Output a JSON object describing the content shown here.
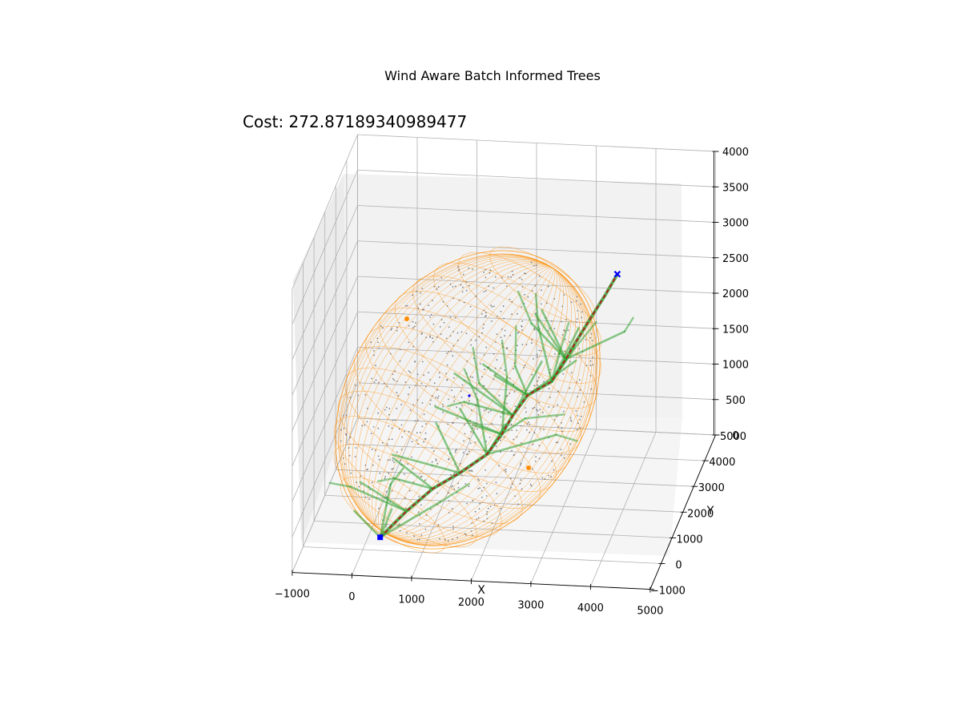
{
  "chart_data": {
    "type": "scatter",
    "projection": "3d",
    "title": "Wind Aware Batch Informed Trees",
    "annotation": "Cost: 272.87189340989477",
    "xlabel": "X",
    "ylabel": "Y",
    "zlabel": "",
    "xlim": [
      -1000,
      5000
    ],
    "ylim": [
      -1000,
      5000
    ],
    "zlim": [
      0,
      4000
    ],
    "xticks": [
      "−1000",
      "0",
      "1000",
      "2000",
      "3000",
      "4000",
      "5000"
    ],
    "yticks": [
      "−1000",
      "0",
      "1000",
      "2000",
      "3000",
      "4000",
      "5000"
    ],
    "zticks": [
      "0",
      "500",
      "1000",
      "1500",
      "2000",
      "2500",
      "3000",
      "3500",
      "4000"
    ],
    "grid": true,
    "colors": {
      "ellipsoid": "#ff8c00",
      "samples": "#808080",
      "tree": "#2ca02c",
      "path": "#b22222",
      "start_goal": "#0000ff",
      "pane": "#f2f2f2",
      "grid": "#b0b0b0"
    },
    "series": [
      {
        "kind": "start",
        "marker": "square",
        "point": [
          200,
          500,
          0
        ]
      },
      {
        "kind": "goal",
        "marker": "x",
        "point": [
          3500,
          4200,
          2500
        ]
      },
      {
        "kind": "solution_path",
        "points": [
          [
            200,
            500,
            0
          ],
          [
            550,
            1000,
            200
          ],
          [
            900,
            1500,
            350
          ],
          [
            1300,
            1800,
            480
          ],
          [
            1700,
            2100,
            650
          ],
          [
            1900,
            2350,
            850
          ],
          [
            2050,
            2550,
            1050
          ],
          [
            2250,
            2800,
            1250
          ],
          [
            2600,
            3100,
            1350
          ],
          [
            2800,
            3300,
            1600
          ],
          [
            2950,
            3500,
            1800
          ],
          [
            3150,
            3750,
            2050
          ],
          [
            3350,
            3950,
            2300
          ],
          [
            3500,
            4200,
            2500
          ]
        ]
      }
    ]
  }
}
